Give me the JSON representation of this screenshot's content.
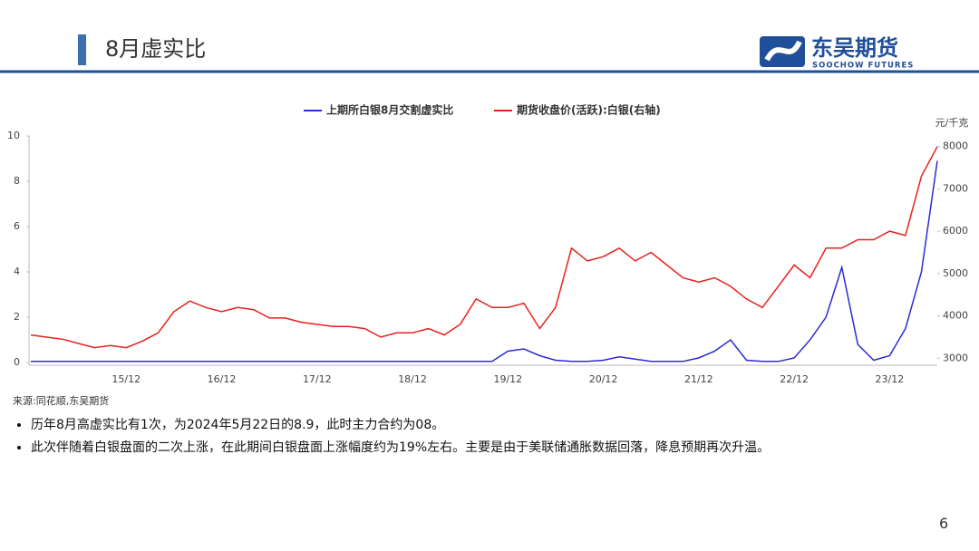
{
  "header": {
    "title": "8月虚实比",
    "logo_cn": "东吴期货",
    "logo_en": "SOOCHOW FUTURES"
  },
  "chart_data": {
    "type": "line",
    "categories": [
      null,
      null,
      null,
      null,
      null,
      null,
      "15/12",
      null,
      null,
      null,
      null,
      null,
      "16/12",
      null,
      null,
      null,
      null,
      null,
      "17/12",
      null,
      null,
      null,
      null,
      null,
      "18/12",
      null,
      null,
      null,
      null,
      null,
      "19/12",
      null,
      null,
      null,
      null,
      null,
      "20/12",
      null,
      null,
      null,
      null,
      null,
      "21/12",
      null,
      null,
      null,
      null,
      null,
      "22/12",
      null,
      null,
      null,
      null,
      null,
      "23/12",
      null,
      null,
      null
    ],
    "series": [
      {
        "name": "上期所白银8月交割虚实比",
        "color": "#2b2bd6",
        "values": [
          0.05,
          0.05,
          0.05,
          0.05,
          0.05,
          0.05,
          0.05,
          0.05,
          0.05,
          0.05,
          0.05,
          0.05,
          0.05,
          0.05,
          0.05,
          0.05,
          0.05,
          0.05,
          0.05,
          0.05,
          0.05,
          0.05,
          0.05,
          0.05,
          0.05,
          0.05,
          0.05,
          0.05,
          0.05,
          0.05,
          0.5,
          0.6,
          0.3,
          0.1,
          0.05,
          0.05,
          0.1,
          0.25,
          0.15,
          0.05,
          0.05,
          0.05,
          0.2,
          0.5,
          1.0,
          0.1,
          0.05,
          0.05,
          0.2,
          1.0,
          2.0,
          4.2,
          0.8,
          0.1,
          0.3,
          1.5,
          4.0,
          8.9
        ]
      },
      {
        "name": "期货收盘价(活跃):白银(右轴)",
        "color": "#e8201c",
        "axis": "y2",
        "values": [
          3550,
          3500,
          3450,
          3350,
          3250,
          3300,
          3250,
          3400,
          3600,
          4100,
          4350,
          4200,
          4100,
          4200,
          4150,
          3950,
          3950,
          3850,
          3800,
          3750,
          3750,
          3700,
          3500,
          3600,
          3600,
          3700,
          3550,
          3800,
          4400,
          4200,
          4200,
          4300,
          3700,
          4200,
          5600,
          5300,
          5400,
          5600,
          5300,
          5500,
          5200,
          4900,
          4800,
          4900,
          4700,
          4400,
          4200,
          4700,
          5200,
          4900,
          5600,
          5600,
          5800,
          5800,
          6000,
          5900,
          7300,
          8000
        ]
      }
    ],
    "ylim": [
      0,
      10
    ],
    "yticks": [
      0,
      2,
      4,
      6,
      8,
      10
    ],
    "y2lim": [
      2900,
      8250
    ],
    "y2ticks": [
      3000,
      4000,
      5000,
      6000,
      7000,
      8000
    ],
    "y2_unit": "元/千克",
    "legend": "top"
  },
  "source": "来源:同花顺,东吴期货",
  "bullets": [
    "历年8月高虚实比有1次，为2024年5月22日的8.9，此时主力合约为08。",
    "此次伴随着白银盘面的二次上涨，在此期间白银盘面上涨幅度约为19%左右。主要是由于美联储通胀数据回落，降息预期再次升温。"
  ],
  "page_number": "6"
}
